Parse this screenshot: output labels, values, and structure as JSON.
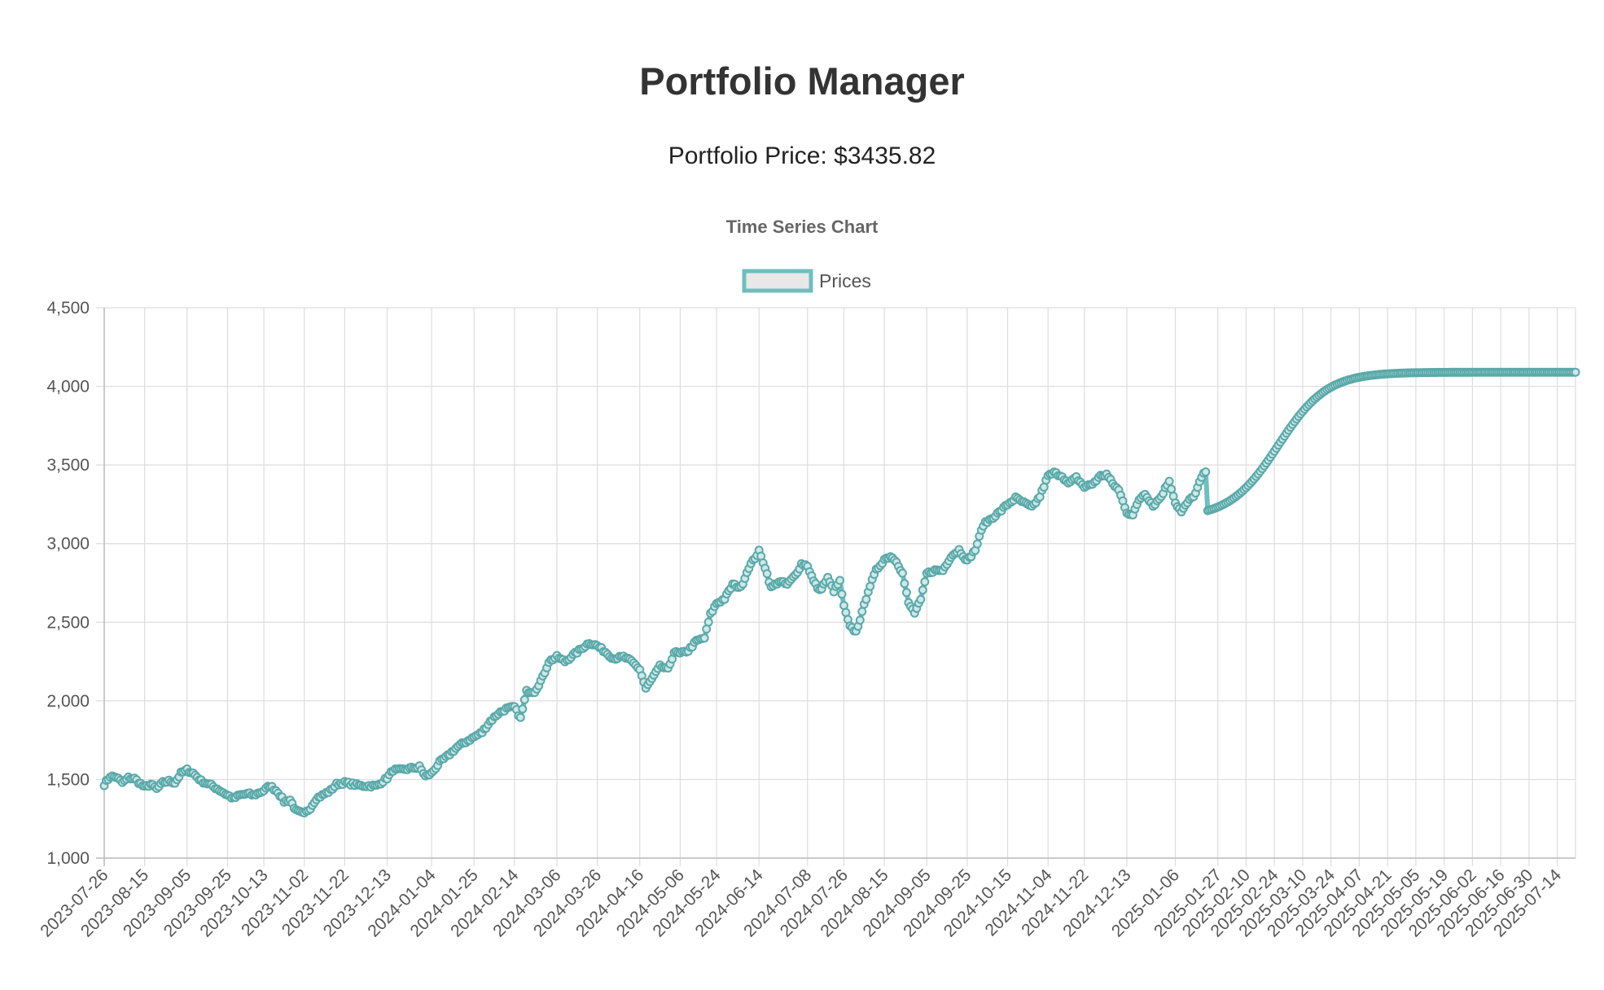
{
  "header": {
    "title": "Portfolio Manager",
    "price_label": "Portfolio Price:",
    "price_value": "$3435.82"
  },
  "colors": {
    "series_line": "#6fbfbf",
    "series_point_border": "#5aa9a9",
    "legend_fill": "#e8e8e8",
    "grid": "#dddddd",
    "text": "#555555"
  },
  "chart_data": {
    "type": "line",
    "title": "Time Series Chart",
    "legend": {
      "position": "top",
      "entries": [
        "Prices"
      ]
    },
    "grid": true,
    "xlabel": "",
    "ylabel": "",
    "y_ticks": [
      "1,000",
      "1,500",
      "2,000",
      "2,500",
      "3,000",
      "3,500",
      "4,000",
      "4,500"
    ],
    "ylim": [
      1000,
      4500
    ],
    "x_tick_labels": [
      "2023-07-26",
      "2023-08-15",
      "2023-09-05",
      "2023-09-25",
      "2023-10-13",
      "2023-11-02",
      "2023-11-22",
      "2023-12-13",
      "2024-01-04",
      "2024-01-25",
      "2024-02-14",
      "2024-03-06",
      "2024-03-26",
      "2024-04-16",
      "2024-05-06",
      "2024-05-24",
      "2024-06-14",
      "2024-07-08",
      "2024-07-26",
      "2024-08-15",
      "2024-09-05",
      "2024-09-25",
      "2024-10-15",
      "2024-11-04",
      "2024-11-22",
      "2024-12-13",
      "2025-01-06",
      "2025-01-27",
      "2025-02-10",
      "2025-02-24",
      "2025-03-10",
      "2025-03-24",
      "2025-04-07",
      "2025-04-21",
      "2025-05-05",
      "2025-05-19",
      "2025-06-02",
      "2025-06-16",
      "2025-06-30",
      "2025-07-14"
    ],
    "series": [
      {
        "name": "Prices",
        "historical": {
          "start": "2023-07-26",
          "end": "2025-01-21",
          "keypoints": [
            [
              "2023-07-26",
              1470
            ],
            [
              "2023-07-29",
              1520
            ],
            [
              "2023-08-01",
              1515
            ],
            [
              "2023-08-04",
              1480
            ],
            [
              "2023-08-07",
              1510
            ],
            [
              "2023-08-10",
              1505
            ],
            [
              "2023-08-15",
              1450
            ],
            [
              "2023-08-18",
              1470
            ],
            [
              "2023-08-21",
              1440
            ],
            [
              "2023-08-24",
              1480
            ],
            [
              "2023-08-27",
              1490
            ],
            [
              "2023-08-30",
              1480
            ],
            [
              "2023-09-02",
              1540
            ],
            [
              "2023-09-05",
              1560
            ],
            [
              "2023-09-08",
              1540
            ],
            [
              "2023-09-12",
              1490
            ],
            [
              "2023-09-16",
              1470
            ],
            [
              "2023-09-20",
              1440
            ],
            [
              "2023-09-25",
              1400
            ],
            [
              "2023-09-28",
              1380
            ],
            [
              "2023-10-01",
              1400
            ],
            [
              "2023-10-05",
              1410
            ],
            [
              "2023-10-08",
              1400
            ],
            [
              "2023-10-13",
              1430
            ],
            [
              "2023-10-16",
              1460
            ],
            [
              "2023-10-20",
              1420
            ],
            [
              "2023-10-23",
              1360
            ],
            [
              "2023-10-26",
              1370
            ],
            [
              "2023-10-29",
              1300
            ],
            [
              "2023-11-02",
              1280
            ],
            [
              "2023-11-05",
              1320
            ],
            [
              "2023-11-08",
              1380
            ],
            [
              "2023-11-11",
              1400
            ],
            [
              "2023-11-15",
              1430
            ],
            [
              "2023-11-18",
              1470
            ],
            [
              "2023-11-22",
              1480
            ],
            [
              "2023-11-26",
              1470
            ],
            [
              "2023-11-30",
              1460
            ],
            [
              "2023-12-04",
              1460
            ],
            [
              "2023-12-08",
              1460
            ],
            [
              "2023-12-13",
              1510
            ],
            [
              "2023-12-16",
              1560
            ],
            [
              "2023-12-20",
              1560
            ],
            [
              "2023-12-24",
              1570
            ],
            [
              "2023-12-29",
              1580
            ],
            [
              "2024-01-01",
              1520
            ],
            [
              "2024-01-04",
              1540
            ],
            [
              "2024-01-08",
              1610
            ],
            [
              "2024-01-12",
              1650
            ],
            [
              "2024-01-17",
              1710
            ],
            [
              "2024-01-21",
              1740
            ],
            [
              "2024-01-25",
              1770
            ],
            [
              "2024-01-29",
              1800
            ],
            [
              "2024-02-02",
              1870
            ],
            [
              "2024-02-06",
              1920
            ],
            [
              "2024-02-10",
              1950
            ],
            [
              "2024-02-14",
              1960
            ],
            [
              "2024-02-17",
              1890
            ],
            [
              "2024-02-20",
              2060
            ],
            [
              "2024-02-24",
              2060
            ],
            [
              "2024-02-28",
              2150
            ],
            [
              "2024-03-02",
              2250
            ],
            [
              "2024-03-06",
              2280
            ],
            [
              "2024-03-10",
              2250
            ],
            [
              "2024-03-14",
              2290
            ],
            [
              "2024-03-18",
              2330
            ],
            [
              "2024-03-22",
              2370
            ],
            [
              "2024-03-26",
              2350
            ],
            [
              "2024-03-30",
              2310
            ],
            [
              "2024-04-03",
              2270
            ],
            [
              "2024-04-08",
              2280
            ],
            [
              "2024-04-12",
              2250
            ],
            [
              "2024-04-16",
              2200
            ],
            [
              "2024-04-19",
              2080
            ],
            [
              "2024-04-22",
              2140
            ],
            [
              "2024-04-26",
              2220
            ],
            [
              "2024-04-30",
              2200
            ],
            [
              "2024-05-03",
              2310
            ],
            [
              "2024-05-06",
              2300
            ],
            [
              "2024-05-10",
              2320
            ],
            [
              "2024-05-14",
              2380
            ],
            [
              "2024-05-18",
              2400
            ],
            [
              "2024-05-21",
              2550
            ],
            [
              "2024-05-24",
              2620
            ],
            [
              "2024-05-28",
              2650
            ],
            [
              "2024-06-01",
              2740
            ],
            [
              "2024-06-05",
              2720
            ],
            [
              "2024-06-09",
              2850
            ],
            [
              "2024-06-14",
              2950
            ],
            [
              "2024-06-17",
              2850
            ],
            [
              "2024-06-20",
              2720
            ],
            [
              "2024-06-24",
              2760
            ],
            [
              "2024-06-28",
              2740
            ],
            [
              "2024-07-02",
              2800
            ],
            [
              "2024-07-05",
              2870
            ],
            [
              "2024-07-08",
              2860
            ],
            [
              "2024-07-11",
              2760
            ],
            [
              "2024-07-14",
              2700
            ],
            [
              "2024-07-18",
              2780
            ],
            [
              "2024-07-21",
              2700
            ],
            [
              "2024-07-24",
              2760
            ],
            [
              "2024-07-26",
              2600
            ],
            [
              "2024-07-29",
              2470
            ],
            [
              "2024-08-01",
              2440
            ],
            [
              "2024-08-04",
              2560
            ],
            [
              "2024-08-07",
              2700
            ],
            [
              "2024-08-11",
              2830
            ],
            [
              "2024-08-15",
              2900
            ],
            [
              "2024-08-18",
              2920
            ],
            [
              "2024-08-21",
              2890
            ],
            [
              "2024-08-24",
              2810
            ],
            [
              "2024-08-27",
              2620
            ],
            [
              "2024-08-30",
              2560
            ],
            [
              "2024-09-02",
              2640
            ],
            [
              "2024-09-05",
              2810
            ],
            [
              "2024-09-09",
              2830
            ],
            [
              "2024-09-13",
              2830
            ],
            [
              "2024-09-17",
              2920
            ],
            [
              "2024-09-21",
              2960
            ],
            [
              "2024-09-25",
              2890
            ],
            [
              "2024-09-29",
              2960
            ],
            [
              "2024-10-03",
              3120
            ],
            [
              "2024-10-07",
              3160
            ],
            [
              "2024-10-11",
              3200
            ],
            [
              "2024-10-15",
              3250
            ],
            [
              "2024-10-19",
              3290
            ],
            [
              "2024-10-23",
              3260
            ],
            [
              "2024-10-27",
              3230
            ],
            [
              "2024-10-31",
              3300
            ],
            [
              "2024-11-04",
              3430
            ],
            [
              "2024-11-07",
              3450
            ],
            [
              "2024-11-11",
              3430
            ],
            [
              "2024-11-14",
              3380
            ],
            [
              "2024-11-18",
              3420
            ],
            [
              "2024-11-22",
              3360
            ],
            [
              "2024-11-26",
              3380
            ],
            [
              "2024-11-30",
              3430
            ],
            [
              "2024-12-03",
              3440
            ],
            [
              "2024-12-06",
              3380
            ],
            [
              "2024-12-09",
              3340
            ],
            [
              "2024-12-13",
              3200
            ],
            [
              "2024-12-16",
              3180
            ],
            [
              "2024-12-19",
              3280
            ],
            [
              "2024-12-22",
              3320
            ],
            [
              "2024-12-26",
              3240
            ],
            [
              "2024-12-30",
              3300
            ],
            [
              "2025-01-03",
              3400
            ],
            [
              "2025-01-06",
              3260
            ],
            [
              "2025-01-09",
              3200
            ],
            [
              "2025-01-12",
              3260
            ],
            [
              "2025-01-16",
              3320
            ],
            [
              "2025-01-19",
              3420
            ],
            [
              "2025-01-21",
              3460
            ]
          ]
        },
        "forecast": {
          "start": "2025-01-22",
          "end": "2025-07-23",
          "from_value": 3210,
          "to_value": 4090,
          "midpoint": "2025-02-26"
        }
      }
    ]
  }
}
